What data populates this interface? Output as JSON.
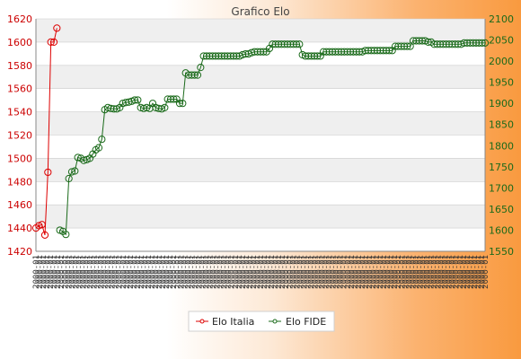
{
  "chart_data": {
    "type": "line",
    "title": "Grafico Elo",
    "y_left": {
      "ylim": [
        1420,
        1620
      ],
      "ticks": [
        1420,
        1440,
        1460,
        1480,
        1500,
        1520,
        1540,
        1560,
        1580,
        1600,
        1620
      ]
    },
    "y_right": {
      "ylim": [
        1550,
        2100
      ],
      "ticks": [
        1550,
        1600,
        1650,
        1700,
        1750,
        1800,
        1850,
        1900,
        1950,
        2000,
        2050,
        2100
      ]
    },
    "x_tick_label": "2000-01",
    "x_count": 125,
    "grid": "horizontal",
    "legend_position": "bottom-center",
    "colors": {
      "italia": "#dd0000",
      "fide": "#1a6a1a",
      "band": "#efefef",
      "grid": "#cccccc"
    },
    "series": [
      {
        "name": "Elo Italia",
        "axis": "left",
        "points": [
          [
            0,
            1440
          ],
          [
            1,
            1442
          ],
          [
            2,
            1443
          ],
          [
            3,
            1434
          ],
          [
            4,
            1488
          ],
          [
            5,
            1600
          ],
          [
            6,
            1600
          ],
          [
            7,
            1612
          ]
        ]
      },
      {
        "name": "Elo FIDE",
        "axis": "right",
        "points": [
          [
            8,
            1600
          ],
          [
            9,
            1597
          ],
          [
            10,
            1590
          ],
          [
            11,
            1722
          ],
          [
            12,
            1738
          ],
          [
            13,
            1740
          ],
          [
            14,
            1772
          ],
          [
            15,
            1770
          ],
          [
            16,
            1765
          ],
          [
            17,
            1767
          ],
          [
            18,
            1770
          ],
          [
            19,
            1780
          ],
          [
            20,
            1790
          ],
          [
            21,
            1795
          ],
          [
            22,
            1815
          ],
          [
            23,
            1885
          ],
          [
            24,
            1890
          ],
          [
            25,
            1888
          ],
          [
            26,
            1887
          ],
          [
            27,
            1887
          ],
          [
            28,
            1890
          ],
          [
            29,
            1900
          ],
          [
            30,
            1902
          ],
          [
            31,
            1903
          ],
          [
            32,
            1905
          ],
          [
            33,
            1908
          ],
          [
            34,
            1908
          ],
          [
            35,
            1890
          ],
          [
            36,
            1888
          ],
          [
            37,
            1890
          ],
          [
            38,
            1888
          ],
          [
            39,
            1900
          ],
          [
            40,
            1890
          ],
          [
            41,
            1888
          ],
          [
            42,
            1887
          ],
          [
            43,
            1890
          ],
          [
            44,
            1910
          ],
          [
            45,
            1910
          ],
          [
            46,
            1910
          ],
          [
            47,
            1910
          ],
          [
            48,
            1900
          ],
          [
            49,
            1900
          ],
          [
            50,
            1972
          ],
          [
            51,
            1967
          ],
          [
            52,
            1967
          ],
          [
            53,
            1967
          ],
          [
            54,
            1967
          ],
          [
            55,
            1985
          ],
          [
            56,
            2012
          ],
          [
            57,
            2012
          ],
          [
            58,
            2012
          ],
          [
            59,
            2012
          ],
          [
            60,
            2012
          ],
          [
            61,
            2012
          ],
          [
            62,
            2012
          ],
          [
            63,
            2012
          ],
          [
            64,
            2012
          ],
          [
            65,
            2012
          ],
          [
            66,
            2012
          ],
          [
            67,
            2012
          ],
          [
            68,
            2012
          ],
          [
            69,
            2015
          ],
          [
            70,
            2017
          ],
          [
            71,
            2017
          ],
          [
            72,
            2020
          ],
          [
            73,
            2022
          ],
          [
            74,
            2022
          ],
          [
            75,
            2022
          ],
          [
            76,
            2022
          ],
          [
            77,
            2022
          ],
          [
            78,
            2030
          ],
          [
            79,
            2040
          ],
          [
            80,
            2040
          ],
          [
            81,
            2040
          ],
          [
            82,
            2040
          ],
          [
            83,
            2040
          ],
          [
            84,
            2040
          ],
          [
            85,
            2040
          ],
          [
            86,
            2040
          ],
          [
            87,
            2040
          ],
          [
            88,
            2040
          ],
          [
            89,
            2015
          ],
          [
            90,
            2012
          ],
          [
            91,
            2012
          ],
          [
            92,
            2012
          ],
          [
            93,
            2012
          ],
          [
            94,
            2012
          ],
          [
            95,
            2012
          ],
          [
            96,
            2022
          ],
          [
            97,
            2022
          ],
          [
            98,
            2022
          ],
          [
            99,
            2022
          ],
          [
            100,
            2022
          ],
          [
            101,
            2022
          ],
          [
            102,
            2022
          ],
          [
            103,
            2022
          ],
          [
            104,
            2022
          ],
          [
            105,
            2022
          ],
          [
            106,
            2022
          ],
          [
            107,
            2022
          ],
          [
            108,
            2022
          ],
          [
            109,
            2022
          ],
          [
            110,
            2025
          ],
          [
            111,
            2025
          ],
          [
            112,
            2025
          ],
          [
            113,
            2025
          ],
          [
            114,
            2025
          ],
          [
            115,
            2025
          ],
          [
            116,
            2025
          ],
          [
            117,
            2025
          ],
          [
            118,
            2025
          ],
          [
            119,
            2025
          ],
          [
            120,
            2035
          ],
          [
            121,
            2035
          ],
          [
            122,
            2035
          ],
          [
            123,
            2035
          ],
          [
            124,
            2035
          ],
          [
            125,
            2035
          ],
          [
            126,
            2048
          ],
          [
            127,
            2048
          ],
          [
            128,
            2048
          ],
          [
            129,
            2048
          ],
          [
            130,
            2048
          ],
          [
            131,
            2045
          ],
          [
            132,
            2045
          ],
          [
            133,
            2040
          ],
          [
            134,
            2040
          ],
          [
            135,
            2040
          ],
          [
            136,
            2040
          ],
          [
            137,
            2040
          ],
          [
            138,
            2040
          ],
          [
            139,
            2040
          ],
          [
            140,
            2040
          ],
          [
            141,
            2040
          ],
          [
            142,
            2040
          ],
          [
            143,
            2043
          ],
          [
            144,
            2043
          ],
          [
            145,
            2043
          ],
          [
            146,
            2043
          ],
          [
            147,
            2043
          ],
          [
            148,
            2043
          ],
          [
            149,
            2043
          ],
          [
            150,
            2043
          ]
        ]
      }
    ]
  }
}
